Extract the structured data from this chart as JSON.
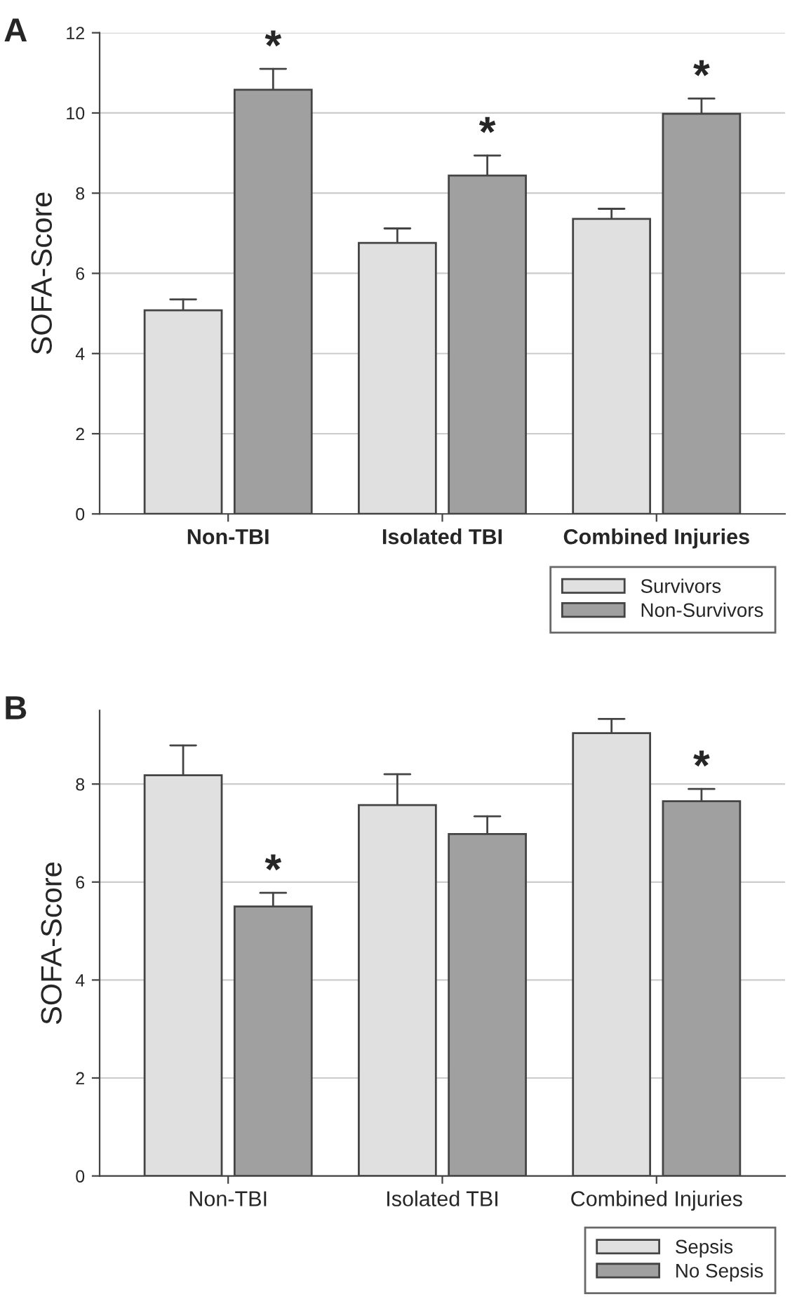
{
  "chart_data": [
    {
      "type": "bar",
      "title": "A",
      "ylabel": "SOFA-Score",
      "categories": [
        "Non-TBI",
        "Isolated TBI",
        "Combined Injuries"
      ],
      "series": [
        {
          "name": "Survivors",
          "color": "#e0e0e0",
          "values": [
            5.08,
            6.76,
            7.36
          ],
          "errors": [
            [
              5.08,
              5.35
            ],
            [
              6.76,
              7.12
            ],
            [
              7.36,
              7.61
            ]
          ]
        },
        {
          "name": "Non-Survivors",
          "color": "#a0a0a0",
          "values": [
            10.58,
            8.44,
            9.98
          ],
          "errors": [
            [
              10.58,
              11.1
            ],
            [
              8.44,
              8.94
            ],
            [
              9.98,
              10.36
            ]
          ]
        }
      ],
      "ylim": [
        0,
        12
      ],
      "yticks": [
        0,
        2,
        4,
        6,
        8,
        10,
        12
      ],
      "grid": "y",
      "legend": "bottom right",
      "annotations": [
        {
          "text": "*",
          "x": "Non-TBI",
          "y": 10.58
        },
        {
          "text": "*",
          "x": "Isolated TBI",
          "y": 8.44
        },
        {
          "text": "*",
          "x": "Combined Injuries",
          "y": 9.98
        }
      ]
    },
    {
      "type": "bar",
      "title": "B",
      "ylabel": "SOFA-Score",
      "categories": [
        "Non-TBI",
        "Isolated TBI",
        "Combined Injuries"
      ],
      "series": [
        {
          "name": "Sepsis",
          "color": "#e0e0e0",
          "values": [
            8.18,
            7.57,
            9.04
          ],
          "errors": [
            [
              8.18,
              8.79
            ],
            [
              7.57,
              8.2
            ],
            [
              9.04,
              9.33
            ]
          ]
        },
        {
          "name": "No Sepsis",
          "color": "#a0a0a0",
          "values": [
            5.5,
            6.98,
            7.65
          ],
          "errors": [
            [
              5.5,
              5.78
            ],
            [
              6.98,
              7.34
            ],
            [
              7.65,
              7.9
            ]
          ]
        }
      ],
      "ylim": [
        0,
        9.5
      ],
      "yticks": [
        0,
        2,
        4,
        6,
        8
      ],
      "grid": "y",
      "legend": "bottom right",
      "annotations": [
        {
          "text": "*",
          "x": "Non-TBI",
          "y": 5.5
        },
        {
          "text": "*",
          "x": "Combined Injuries",
          "y": 7.65
        }
      ]
    }
  ]
}
